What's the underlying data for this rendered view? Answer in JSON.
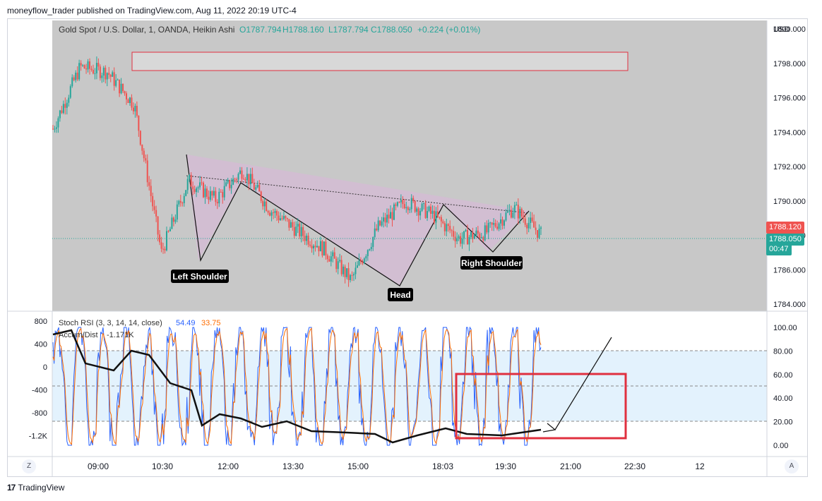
{
  "header": {
    "published": "moneyflow_trader published on TradingView.com, Aug 11, 2022 20:19 UTC-4"
  },
  "symbol": {
    "name": "Gold Spot / U.S. Dollar, 1, OANDA, Heikin Ashi",
    "ohlc": [
      "O1787.794",
      "H1788.160",
      "L1787.794",
      "C1788.050",
      "+0.224 (+0.01%)"
    ]
  },
  "price_axis": {
    "currency": "USD",
    "ticks": [
      "1800.000",
      "1798.000",
      "1796.000",
      "1794.000",
      "1792.000",
      "1790.000",
      "1788.000",
      "1786.000",
      "1784.000"
    ]
  },
  "price_labels": {
    "red": "1788.120",
    "green": "1788.050",
    "timer": "00:47"
  },
  "patterns": {
    "left_shoulder": "Left Shoulder",
    "head": "Head",
    "right_shoulder": "Right Shoulder"
  },
  "indicators": {
    "stoch": {
      "label": "Stoch RSI (3, 3, 14, 14, close)",
      "k": "54.49",
      "d": "33.75"
    },
    "accum": {
      "label": "Accum/Dist",
      "value": "-1.171K"
    },
    "left_ticks": [
      "800",
      "400",
      "0",
      "-400",
      "-800",
      "-1.2K"
    ],
    "right_ticks": [
      "100.00",
      "80.00",
      "60.00",
      "40.00",
      "20.00",
      "0.00"
    ]
  },
  "time_axis": [
    "09:00",
    "10:30",
    "12:00",
    "13:30",
    "15:00",
    "18:03",
    "19:30",
    "21:00",
    "22:30",
    "12"
  ],
  "corners": {
    "left": "Z",
    "right": "A"
  },
  "footer": {
    "brand": "TradingView"
  },
  "chart_data": {
    "type": "candlestick",
    "title": "Gold Spot / U.S. Dollar, 1, OANDA, Heikin Ashi",
    "ylim": [
      1783.6,
      1800.5
    ],
    "series": [
      {
        "name": "Gold Spot / U.S. Dollar",
        "x": [
          "08:00",
          "09:00",
          "10:00",
          "10:30",
          "11:00",
          "12:00",
          "13:00",
          "13:30",
          "14:00",
          "15:00",
          "16:00",
          "16:30",
          "17:00",
          "18:03",
          "18:30",
          "19:00",
          "19:30",
          "20:00",
          "20:20"
        ],
        "values": [
          1794.2,
          1797.8,
          1797.5,
          1795.6,
          1787.0,
          1791.2,
          1790.1,
          1791.8,
          1789.5,
          1788.3,
          1787.2,
          1785.4,
          1788.5,
          1790.0,
          1789.2,
          1787.8,
          1788.2,
          1789.6,
          1788.05
        ]
      }
    ],
    "stoch_rsi": {
      "k": 54.49,
      "d": 33.75,
      "bands": [
        80,
        20
      ]
    },
    "accum_dist": -1171
  }
}
